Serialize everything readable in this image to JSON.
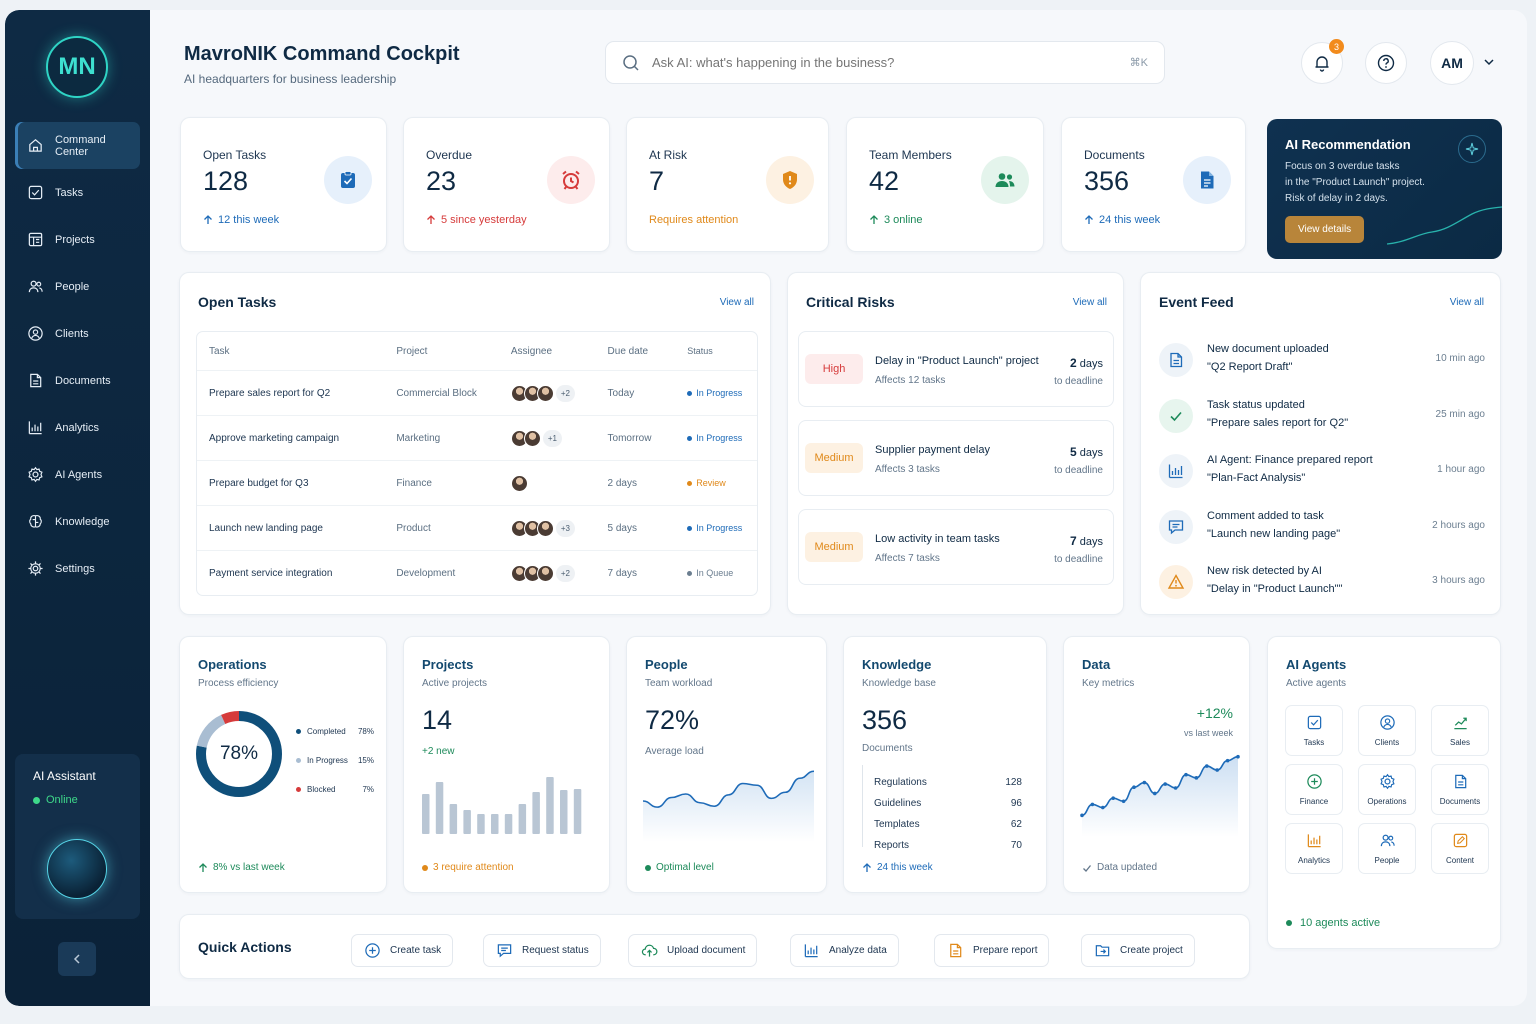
{
  "brand": {
    "logo": "MN",
    "accent": "#2fd4c5",
    "sidebar_bg": "#0e2a44"
  },
  "header": {
    "title": "MavroNIK Command Cockpit",
    "subtitle": "AI headquarters for business leadership",
    "search_placeholder": "Ask AI: what's happening in the business?",
    "search_shortcut": "⌘K",
    "notifications_count": "3",
    "user_initials": "AM"
  },
  "sidebar": {
    "items": [
      {
        "label": "Command Center",
        "icon": "home-icon",
        "active": true
      },
      {
        "label": "Tasks",
        "icon": "checkbox-icon"
      },
      {
        "label": "Projects",
        "icon": "board-icon"
      },
      {
        "label": "People",
        "icon": "people-icon"
      },
      {
        "label": "Clients",
        "icon": "client-icon"
      },
      {
        "label": "Documents",
        "icon": "document-icon"
      },
      {
        "label": "Analytics",
        "icon": "analytics-icon"
      },
      {
        "label": "AI Agents",
        "icon": "gear-icon"
      },
      {
        "label": "Knowledge",
        "icon": "brain-icon"
      },
      {
        "label": "Settings",
        "icon": "settings-icon"
      }
    ],
    "assistant": {
      "title": "AI Assistant",
      "status": "Online"
    }
  },
  "kpis": [
    {
      "label": "Open Tasks",
      "value": "128",
      "note": "12 this week",
      "note_color": "#1e6bb8"
    },
    {
      "label": "Overdue",
      "value": "23",
      "note": "5 since yesterday",
      "note_color": "#d63b3b"
    },
    {
      "label": "At Risk",
      "value": "7",
      "note": "Requires attention",
      "note_color": "#e0891a"
    },
    {
      "label": "Team Members",
      "value": "42",
      "note": "3 online",
      "note_color": "#1d8a5a"
    },
    {
      "label": "Documents",
      "value": "356",
      "note": "24 this week",
      "note_color": "#1e6bb8"
    }
  ],
  "recommendation": {
    "title": "AI Recommendation",
    "line1": "Focus on 3 overdue tasks",
    "line2": "in the \"Product Launch\" project.",
    "line3": "Risk of delay in 2 days.",
    "button": "View details"
  },
  "open_tasks": {
    "title": "Open Tasks",
    "view_all": "View all",
    "columns": [
      "Task",
      "Project",
      "Assignee",
      "Due date",
      "Status"
    ],
    "rows": [
      {
        "task": "Prepare sales report for Q2",
        "project": "Commercial Block",
        "avatars": 3,
        "more": "+2",
        "due": "Today",
        "status": "In Progress",
        "status_color": "#1e6bb8"
      },
      {
        "task": "Approve marketing campaign",
        "project": "Marketing",
        "avatars": 2,
        "more": "+1",
        "due": "Tomorrow",
        "status": "In Progress",
        "status_color": "#1e6bb8"
      },
      {
        "task": "Prepare budget for Q3",
        "project": "Finance",
        "avatars": 1,
        "more": "",
        "due": "2 days",
        "status": "Review",
        "status_color": "#e0891a"
      },
      {
        "task": "Launch new landing page",
        "project": "Product",
        "avatars": 3,
        "more": "+3",
        "due": "5 days",
        "status": "In Progress",
        "status_color": "#1e6bb8"
      },
      {
        "task": "Payment service integration",
        "project": "Development",
        "avatars": 3,
        "more": "+2",
        "due": "7 days",
        "status": "In Queue",
        "status_color": "#6b7e90"
      }
    ]
  },
  "critical_risks": {
    "title": "Critical Risks",
    "view_all": "View all",
    "items": [
      {
        "level": "High",
        "name": "Delay in \"Product Launch\" project",
        "affects": "Affects 12 tasks",
        "days": "2",
        "unit": "days",
        "deadline": "to deadline",
        "bg": "#fdecec",
        "fg": "#d63b3b"
      },
      {
        "level": "Medium",
        "name": "Supplier payment delay",
        "affects": "Affects 3 tasks",
        "days": "5",
        "unit": "days",
        "deadline": "to deadline",
        "bg": "#fdf1e2",
        "fg": "#e0891a"
      },
      {
        "level": "Medium",
        "name": "Low activity in team tasks",
        "affects": "Affects 7 tasks",
        "days": "7",
        "unit": "days",
        "deadline": "to deadline",
        "bg": "#fdf1e2",
        "fg": "#e0891a"
      }
    ]
  },
  "event_feed": {
    "title": "Event Feed",
    "view_all": "View all",
    "items": [
      {
        "line1": "New document uploaded",
        "line2": "\"Q2 Report Draft\"",
        "time": "10 min ago",
        "icon": "document-icon"
      },
      {
        "line1": "Task status updated",
        "line2": "\"Prepare sales report for Q2\"",
        "time": "25 min ago",
        "icon": "check-icon"
      },
      {
        "line1": "AI Agent: Finance prepared report",
        "line2": "\"Plan-Fact Analysis\"",
        "time": "1 hour ago",
        "icon": "analytics-icon"
      },
      {
        "line1": "Comment added to task",
        "line2": "\"Launch new landing page\"",
        "time": "2 hours ago",
        "icon": "comment-icon"
      },
      {
        "line1": "New risk detected by AI",
        "line2": "\"Delay in \"Product Launch\"\"",
        "time": "3 hours ago",
        "icon": "warning-icon"
      }
    ]
  },
  "operations": {
    "title": "Operations",
    "subtitle": "Process efficiency",
    "center": "78%",
    "legend": [
      {
        "label": "Completed",
        "value": "78%",
        "pct": 78,
        "color": "#0f4f7a"
      },
      {
        "label": "In Progress",
        "value": "15%",
        "pct": 15,
        "color": "#a9bdd2"
      },
      {
        "label": "Blocked",
        "value": "7%",
        "pct": 7,
        "color": "#d63b3b"
      }
    ],
    "footer": "8% vs last week"
  },
  "projects": {
    "title": "Projects",
    "subtitle": "Active projects",
    "value": "14",
    "delta": "+2 new",
    "footer": "3 require attention",
    "bars": [
      40,
      52,
      30,
      24,
      20,
      20,
      20,
      30,
      42,
      57,
      44,
      45
    ]
  },
  "people": {
    "title": "People",
    "subtitle": "Team workload",
    "value": "72%",
    "caption": "Average load",
    "footer": "Optimal level",
    "trend": [
      40,
      33,
      44,
      48,
      38,
      34,
      47,
      60,
      58,
      43,
      50,
      66,
      74
    ]
  },
  "knowledge": {
    "title": "Knowledge",
    "subtitle": "Knowledge base",
    "value": "356",
    "caption": "Documents",
    "list": [
      {
        "label": "Regulations",
        "value": "128"
      },
      {
        "label": "Guidelines",
        "value": "96"
      },
      {
        "label": "Templates",
        "value": "62"
      },
      {
        "label": "Reports",
        "value": "70"
      }
    ],
    "footer": "24 this week"
  },
  "data_card": {
    "title": "Data",
    "subtitle": "Key metrics",
    "delta": "+12%",
    "delta_note": "vs last week",
    "footer": "Data updated",
    "trend": [
      20,
      34,
      30,
      42,
      38,
      56,
      62,
      48,
      60,
      55,
      72,
      68,
      83,
      78,
      90,
      95
    ]
  },
  "ai_agents": {
    "title": "AI Agents",
    "subtitle": "Active agents",
    "footer": "10 agents active",
    "agents": [
      {
        "label": "Tasks",
        "icon": "checkbox-icon",
        "color": "#1e6bb8"
      },
      {
        "label": "Clients",
        "icon": "client-icon",
        "color": "#1e6bb8"
      },
      {
        "label": "Sales",
        "icon": "chart-line-icon",
        "color": "#1d8a5a"
      },
      {
        "label": "Finance",
        "icon": "plus-circle-icon",
        "color": "#1d8a5a"
      },
      {
        "label": "Operations",
        "icon": "gear-icon",
        "color": "#1e6bb8"
      },
      {
        "label": "Documents",
        "icon": "document-icon",
        "color": "#1e6bb8"
      },
      {
        "label": "Analytics",
        "icon": "analytics-icon",
        "color": "#e0891a"
      },
      {
        "label": "People",
        "icon": "people-icon",
        "color": "#1e6bb8"
      },
      {
        "label": "Content",
        "icon": "edit-icon",
        "color": "#e0891a"
      }
    ]
  },
  "quick_actions": {
    "title": "Quick Actions",
    "items": [
      {
        "label": "Create task",
        "icon": "plus-circle-icon"
      },
      {
        "label": "Request status",
        "icon": "comment-icon"
      },
      {
        "label": "Upload document",
        "icon": "cloud-upload-icon"
      },
      {
        "label": "Analyze data",
        "icon": "analytics-icon"
      },
      {
        "label": "Prepare report",
        "icon": "document-icon"
      },
      {
        "label": "Create project",
        "icon": "folder-icon"
      }
    ]
  }
}
